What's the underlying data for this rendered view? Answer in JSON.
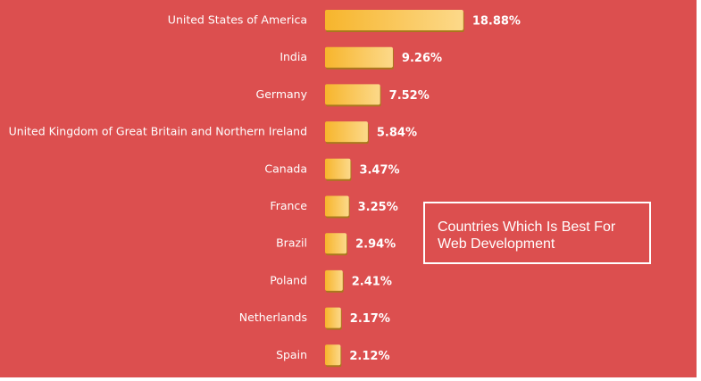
{
  "chart_data": {
    "type": "bar",
    "orientation": "horizontal",
    "title": "Countries Which Is Best For Web Development",
    "categories": [
      "United States of America",
      "India",
      "Germany",
      "United Kingdom of Great Britain and Northern Ireland",
      "Canada",
      "France",
      "Brazil",
      "Poland",
      "Netherlands",
      "Spain"
    ],
    "values": [
      18.88,
      9.26,
      7.52,
      5.84,
      3.47,
      3.25,
      2.94,
      2.41,
      2.17,
      2.12
    ],
    "value_labels": [
      "18.88%",
      "9.26%",
      "7.52%",
      "5.84%",
      "3.47%",
      "3.25%",
      "2.94%",
      "2.41%",
      "2.17%",
      "2.12%"
    ],
    "unit": "%",
    "grid": false,
    "colors": {
      "background": "#dc4f4f",
      "bar_start": "#f7b52c",
      "bar_end": "#fcd98a",
      "bar_shadow": "#a9781c",
      "text": "#ffffff"
    }
  }
}
